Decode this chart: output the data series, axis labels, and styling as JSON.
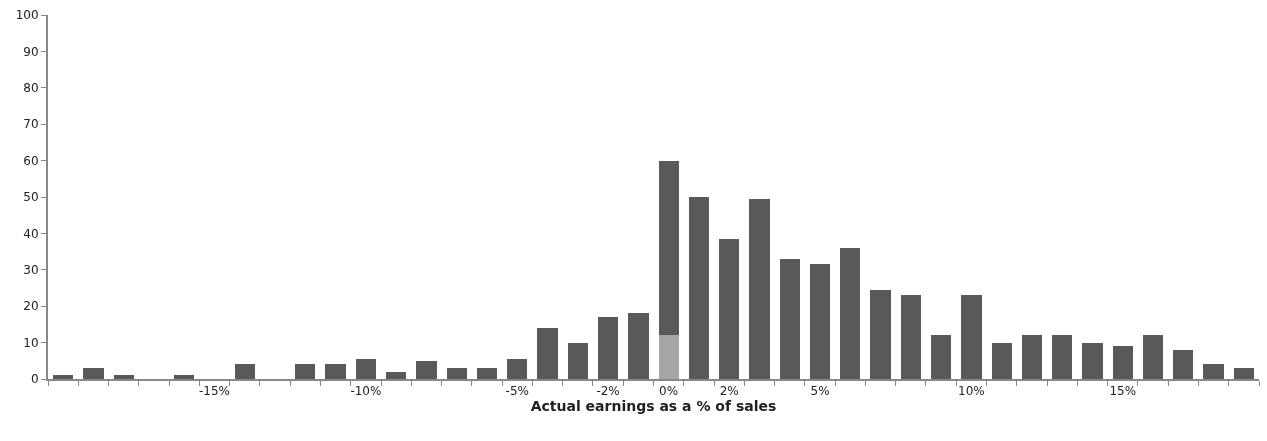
{
  "chart_data": {
    "type": "bar",
    "stacked": true,
    "xlabel": "Actual earnings as a % of sales",
    "categories": [
      null,
      null,
      null,
      null,
      null,
      "-15%",
      null,
      null,
      null,
      null,
      "-10%",
      null,
      null,
      null,
      null,
      "-5%",
      null,
      null,
      "-2%",
      null,
      "0%",
      null,
      "2%",
      null,
      null,
      "5%",
      null,
      null,
      null,
      null,
      "10%",
      null,
      null,
      null,
      null,
      "15%",
      null,
      null,
      null,
      null
    ],
    "series": [
      {
        "color": "#a6a6a6",
        "values": [
          null,
          null,
          null,
          null,
          null,
          null,
          null,
          null,
          null,
          null,
          null,
          null,
          null,
          null,
          null,
          null,
          null,
          null,
          null,
          null,
          12,
          null,
          null,
          null,
          null,
          null,
          null,
          null,
          null,
          null,
          null,
          null,
          null,
          null,
          null,
          null,
          null,
          null,
          null,
          null
        ]
      },
      {
        "color": "#595959",
        "values": [
          1,
          3,
          1,
          0,
          1,
          0,
          4,
          0,
          4,
          4,
          5.5,
          2,
          5,
          3,
          3,
          5.5,
          14,
          10,
          17,
          18,
          48,
          50,
          38.5,
          49.5,
          33,
          31.5,
          36,
          24.5,
          23,
          12,
          23,
          10,
          12,
          12,
          10,
          9,
          12,
          8,
          4,
          3
        ]
      }
    ],
    "ylim": [
      0,
      100
    ],
    "yticks": [
      0,
      10,
      20,
      30,
      40,
      50,
      60,
      70,
      80,
      90,
      100
    ]
  }
}
